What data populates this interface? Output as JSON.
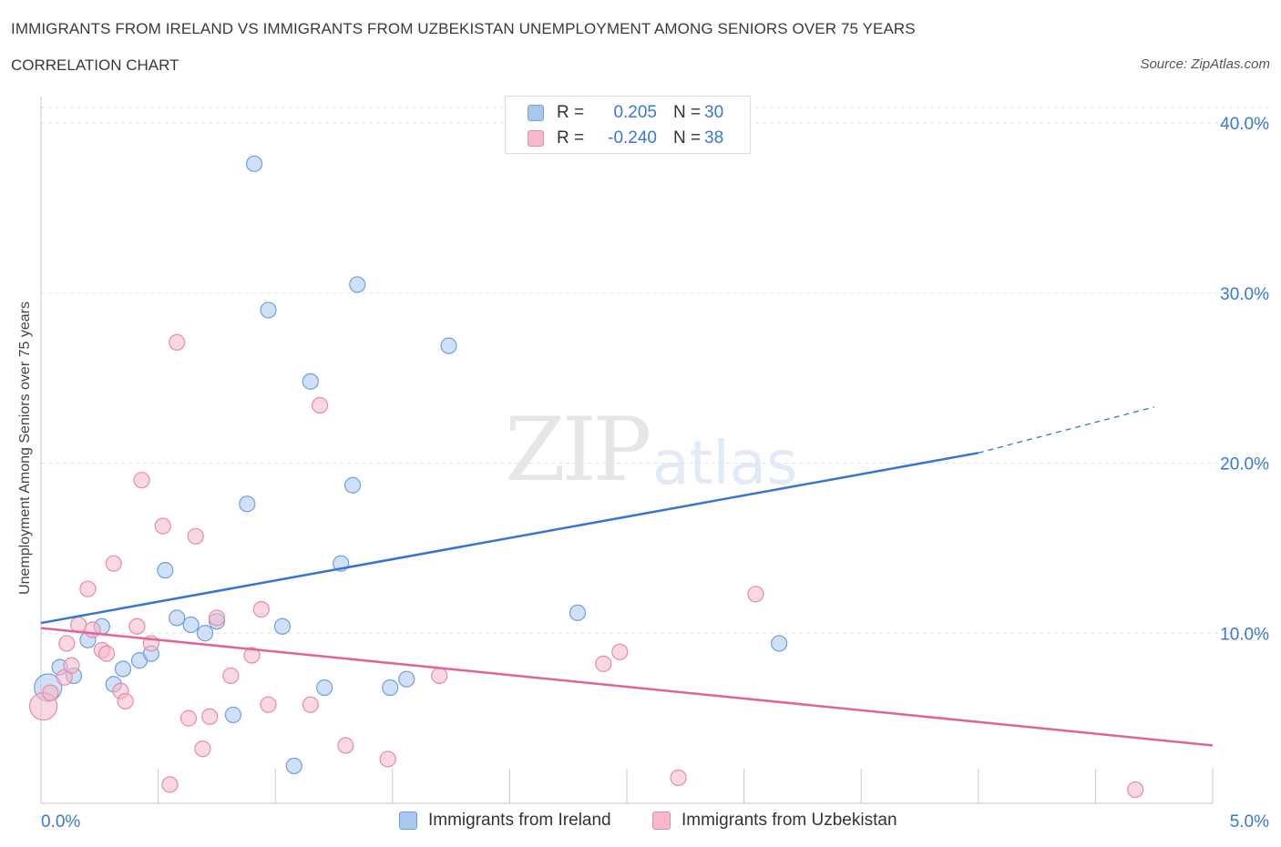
{
  "title": "IMMIGRANTS FROM IRELAND VS IMMIGRANTS FROM UZBEKISTAN UNEMPLOYMENT AMONG SENIORS OVER 75 YEARS",
  "subtitle": "CORRELATION CHART",
  "source": "Source: ZipAtlas.com",
  "watermark": {
    "zip": "ZIP",
    "atlas": "atlas"
  },
  "legend": {
    "rows": [
      {
        "r_label": "R =",
        "r_value": "0.205",
        "n_label": "N =",
        "n_value": "30"
      },
      {
        "r_label": "R =",
        "r_value": "-0.240",
        "n_label": "N =",
        "n_value": "38"
      }
    ]
  },
  "bottom_legend": [
    "Immigrants from Ireland",
    "Immigrants from Uzbekistan"
  ],
  "colors": {
    "ireland_fill": "#a9c8f0",
    "ireland_stroke": "#6f9fdc",
    "ireland_line": "#3575d0",
    "uzbekistan_fill": "#f6b8cb",
    "uzbekistan_stroke": "#e88aa8",
    "uzbekistan_line": "#e0649a",
    "grid": "#e2e2e2",
    "tick_label": "#3b78d0"
  },
  "chart_data": {
    "type": "scatter",
    "title": "IMMIGRANTS FROM IRELAND VS IMMIGRANTS FROM UZBEKISTAN UNEMPLOYMENT AMONG SENIORS OVER 75 YEARS",
    "xlabel": "",
    "ylabel": "Unemployment Among Seniors over 75 years",
    "xlim": [
      0,
      5
    ],
    "ylim": [
      0,
      40
    ],
    "x_tick_labels": [
      "0.0%",
      "5.0%"
    ],
    "y_ticks": [
      10,
      20,
      30,
      40
    ],
    "y_tick_labels": [
      "10.0%",
      "20.0%",
      "30.0%",
      "40.0%"
    ],
    "grid": true,
    "series": [
      {
        "name": "Immigrants from Ireland",
        "R": 0.205,
        "N": 30,
        "trend": {
          "x0": 0,
          "y0": 10.6,
          "x1": 4.0,
          "y1": 20.6,
          "dash_to_x": 4.75,
          "dash_to_y": 23.3
        },
        "points": [
          {
            "x": 0.03,
            "y": 6.8,
            "big": true
          },
          {
            "x": 0.08,
            "y": 8.0
          },
          {
            "x": 0.14,
            "y": 7.5
          },
          {
            "x": 0.2,
            "y": 9.6
          },
          {
            "x": 0.26,
            "y": 10.4
          },
          {
            "x": 0.31,
            "y": 7.0
          },
          {
            "x": 0.35,
            "y": 7.9
          },
          {
            "x": 0.42,
            "y": 8.4
          },
          {
            "x": 0.47,
            "y": 8.8
          },
          {
            "x": 0.53,
            "y": 13.7
          },
          {
            "x": 0.58,
            "y": 10.9
          },
          {
            "x": 0.64,
            "y": 10.5
          },
          {
            "x": 0.7,
            "y": 10.0
          },
          {
            "x": 0.75,
            "y": 10.7
          },
          {
            "x": 0.82,
            "y": 5.2
          },
          {
            "x": 0.88,
            "y": 17.6
          },
          {
            "x": 0.91,
            "y": 37.6
          },
          {
            "x": 0.97,
            "y": 29.0
          },
          {
            "x": 1.03,
            "y": 10.4
          },
          {
            "x": 1.08,
            "y": 2.2
          },
          {
            "x": 1.15,
            "y": 24.8
          },
          {
            "x": 1.21,
            "y": 6.8
          },
          {
            "x": 1.28,
            "y": 14.1
          },
          {
            "x": 1.33,
            "y": 18.7
          },
          {
            "x": 1.35,
            "y": 30.5
          },
          {
            "x": 1.49,
            "y": 6.8
          },
          {
            "x": 1.56,
            "y": 7.3
          },
          {
            "x": 1.74,
            "y": 26.9
          },
          {
            "x": 2.29,
            "y": 11.2
          },
          {
            "x": 3.15,
            "y": 9.4
          }
        ]
      },
      {
        "name": "Immigrants from Uzbekistan",
        "R": -0.24,
        "N": 38,
        "trend": {
          "x0": 0,
          "y0": 10.3,
          "x1": 5.0,
          "y1": 3.4
        },
        "points": [
          {
            "x": 0.01,
            "y": 5.7,
            "big": true
          },
          {
            "x": 0.04,
            "y": 6.5
          },
          {
            "x": 0.1,
            "y": 7.4
          },
          {
            "x": 0.11,
            "y": 9.4
          },
          {
            "x": 0.13,
            "y": 8.1
          },
          {
            "x": 0.16,
            "y": 10.5
          },
          {
            "x": 0.2,
            "y": 12.6
          },
          {
            "x": 0.22,
            "y": 10.2
          },
          {
            "x": 0.26,
            "y": 9.0
          },
          {
            "x": 0.28,
            "y": 8.8
          },
          {
            "x": 0.31,
            "y": 14.1
          },
          {
            "x": 0.34,
            "y": 6.6
          },
          {
            "x": 0.36,
            "y": 6.0
          },
          {
            "x": 0.41,
            "y": 10.4
          },
          {
            "x": 0.43,
            "y": 19.0
          },
          {
            "x": 0.47,
            "y": 9.4
          },
          {
            "x": 0.52,
            "y": 16.3
          },
          {
            "x": 0.55,
            "y": 1.1
          },
          {
            "x": 0.58,
            "y": 27.1
          },
          {
            "x": 0.63,
            "y": 5.0
          },
          {
            "x": 0.66,
            "y": 15.7
          },
          {
            "x": 0.69,
            "y": 3.2
          },
          {
            "x": 0.72,
            "y": 5.1
          },
          {
            "x": 0.75,
            "y": 10.9
          },
          {
            "x": 0.81,
            "y": 7.5
          },
          {
            "x": 0.9,
            "y": 8.7
          },
          {
            "x": 0.94,
            "y": 11.4
          },
          {
            "x": 0.97,
            "y": 5.8
          },
          {
            "x": 1.15,
            "y": 5.8
          },
          {
            "x": 1.19,
            "y": 23.4
          },
          {
            "x": 1.3,
            "y": 3.4
          },
          {
            "x": 1.48,
            "y": 2.6
          },
          {
            "x": 1.7,
            "y": 7.5
          },
          {
            "x": 2.4,
            "y": 8.2
          },
          {
            "x": 2.47,
            "y": 8.9
          },
          {
            "x": 2.72,
            "y": 1.5
          },
          {
            "x": 3.05,
            "y": 12.3
          },
          {
            "x": 4.67,
            "y": 0.8
          }
        ]
      }
    ]
  }
}
